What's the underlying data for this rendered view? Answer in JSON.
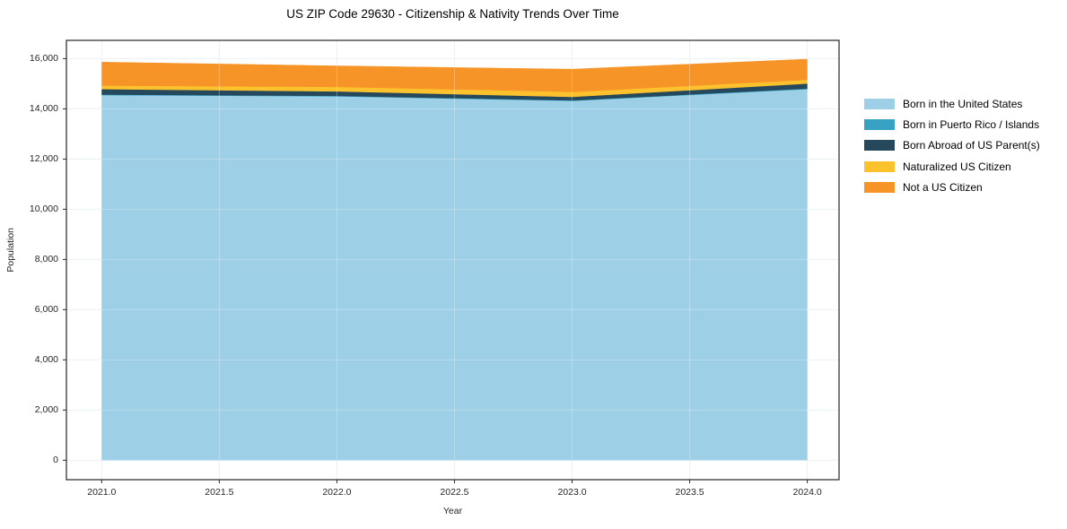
{
  "title": "US ZIP Code 29630 - Citizenship & Nativity Trends Over Time",
  "chart_data": {
    "type": "area",
    "stacked": true,
    "title": "US ZIP Code 29630 - Citizenship & Nativity Trends Over Time",
    "xlabel": "Year",
    "ylabel": "Population",
    "x": [
      2021,
      2022,
      2023,
      2024
    ],
    "x_ticks": [
      "2021.0",
      "2021.5",
      "2022.0",
      "2022.5",
      "2023.0",
      "2023.5",
      "2024.0"
    ],
    "y_ticks": [
      "0",
      "2,000",
      "4,000",
      "6,000",
      "8,000",
      "10,000",
      "12,000",
      "14,000",
      "16,000"
    ],
    "xlim": [
      2020.85,
      2024.135
    ],
    "ylim": [
      -775,
      16729
    ],
    "grid": true,
    "grid_color": "#e7edf2",
    "axis_color": "#262626",
    "legend_position": "right-outside",
    "series": [
      {
        "name": "Born in the United States",
        "color": "#9dcfe6",
        "values": [
          14550,
          14500,
          14320,
          14790
        ]
      },
      {
        "name": "Born in Puerto Rico / Islands",
        "color": "#38a2c4",
        "values": [
          20,
          20,
          20,
          20
        ]
      },
      {
        "name": "Born Abroad of US Parent(s)",
        "color": "#25485c",
        "values": [
          220,
          180,
          140,
          200
        ]
      },
      {
        "name": "Naturalized US Citizen",
        "color": "#fcc22d",
        "values": [
          140,
          180,
          200,
          150
        ]
      },
      {
        "name": "Not a US Citizen",
        "color": "#f79428",
        "values": [
          930,
          830,
          900,
          820
        ]
      }
    ],
    "stacked_totals": [
      15860,
      15710,
      15580,
      15980
    ]
  }
}
